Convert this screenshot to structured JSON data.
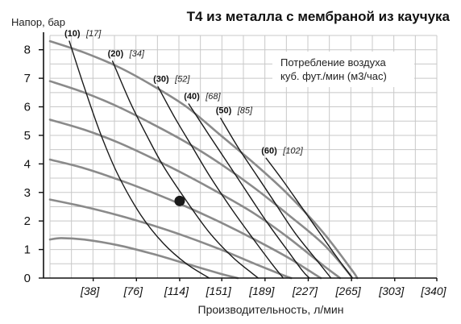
{
  "chart_data": {
    "type": "line",
    "title": "T4 из металла с мембраной из каучука",
    "ylabel": "Напор, бар",
    "xlabel": "Производительность, л/мин",
    "xlim": [
      0,
      340
    ],
    "ylim": [
      0,
      8.5
    ],
    "x_tick_labels": [
      "[38]",
      "[76]",
      "[114]",
      "[151]",
      "[189]",
      "[227]",
      "[265]",
      "[303]",
      "[340]"
    ],
    "x_tick_values": [
      38,
      76,
      114,
      151,
      189,
      227,
      265,
      303,
      340
    ],
    "y_ticks": [
      0,
      1,
      2,
      3,
      4,
      5,
      6,
      7,
      8
    ],
    "grid": true,
    "legend": {
      "line1": "Потребление воздуха",
      "line2": "куб. фут./мин (м3/час)",
      "placement": "top-right"
    },
    "marker": {
      "x": 114,
      "y": 2.7
    },
    "pump_curves": [
      {
        "points": [
          [
            0,
            8.3
          ],
          [
            30,
            7.9
          ],
          [
            60,
            7.4
          ],
          [
            90,
            6.75
          ],
          [
            120,
            6.0
          ],
          [
            150,
            5.0
          ],
          [
            180,
            4.0
          ],
          [
            210,
            2.9
          ],
          [
            240,
            1.6
          ],
          [
            265,
            0.3
          ],
          [
            270,
            0
          ]
        ]
      },
      {
        "points": [
          [
            0,
            6.9
          ],
          [
            30,
            6.5
          ],
          [
            60,
            6.0
          ],
          [
            90,
            5.4
          ],
          [
            120,
            4.75
          ],
          [
            150,
            4.0
          ],
          [
            180,
            3.15
          ],
          [
            210,
            2.2
          ],
          [
            240,
            1.2
          ],
          [
            262,
            0.2
          ],
          [
            265,
            0
          ]
        ]
      },
      {
        "points": [
          [
            0,
            5.55
          ],
          [
            30,
            5.2
          ],
          [
            60,
            4.75
          ],
          [
            90,
            4.2
          ],
          [
            120,
            3.6
          ],
          [
            150,
            2.95
          ],
          [
            180,
            2.25
          ],
          [
            210,
            1.4
          ],
          [
            240,
            0.45
          ],
          [
            255,
            0
          ]
        ]
      },
      {
        "points": [
          [
            0,
            4.15
          ],
          [
            30,
            3.85
          ],
          [
            60,
            3.45
          ],
          [
            90,
            3.0
          ],
          [
            120,
            2.5
          ],
          [
            150,
            1.95
          ],
          [
            180,
            1.35
          ],
          [
            210,
            0.7
          ],
          [
            232,
            0.15
          ],
          [
            238,
            0
          ]
        ]
      },
      {
        "points": [
          [
            0,
            2.75
          ],
          [
            30,
            2.5
          ],
          [
            60,
            2.2
          ],
          [
            90,
            1.85
          ],
          [
            120,
            1.45
          ],
          [
            150,
            1.0
          ],
          [
            180,
            0.5
          ],
          [
            205,
            0.1
          ],
          [
            212,
            0
          ]
        ]
      },
      {
        "points": [
          [
            0,
            1.35
          ],
          [
            10,
            1.4
          ],
          [
            30,
            1.35
          ],
          [
            60,
            1.15
          ],
          [
            90,
            0.85
          ],
          [
            120,
            0.5
          ],
          [
            150,
            0.15
          ],
          [
            165,
            0
          ]
        ]
      }
    ],
    "air_curves": [
      {
        "label_a": "(10)",
        "label_b": "[17]",
        "points": [
          [
            17,
            8.3
          ],
          [
            30,
            6.7
          ],
          [
            45,
            5.0
          ],
          [
            60,
            3.6
          ],
          [
            80,
            2.2
          ],
          [
            100,
            1.2
          ],
          [
            120,
            0.5
          ],
          [
            140,
            0
          ]
        ]
      },
      {
        "label_a": "(20)",
        "label_b": "[34]",
        "points": [
          [
            55,
            7.6
          ],
          [
            70,
            6.2
          ],
          [
            85,
            5.0
          ],
          [
            100,
            3.9
          ],
          [
            120,
            2.7
          ],
          [
            140,
            1.6
          ],
          [
            160,
            0.75
          ],
          [
            175,
            0.25
          ],
          [
            183,
            0
          ]
        ]
      },
      {
        "label_a": "(30)",
        "label_b": "[52]",
        "points": [
          [
            95,
            6.7
          ],
          [
            110,
            5.6
          ],
          [
            125,
            4.6
          ],
          [
            140,
            3.6
          ],
          [
            160,
            2.4
          ],
          [
            180,
            1.3
          ],
          [
            195,
            0.5
          ],
          [
            205,
            0
          ]
        ]
      },
      {
        "label_a": "(40)",
        "label_b": "[68]",
        "points": [
          [
            122,
            6.1
          ],
          [
            140,
            5.0
          ],
          [
            155,
            4.1
          ],
          [
            170,
            3.2
          ],
          [
            190,
            2.0
          ],
          [
            210,
            0.9
          ],
          [
            222,
            0.25
          ],
          [
            228,
            0
          ]
        ]
      },
      {
        "label_a": "(50)",
        "label_b": "[85]",
        "points": [
          [
            150,
            5.6
          ],
          [
            165,
            4.6
          ],
          [
            180,
            3.7
          ],
          [
            195,
            2.8
          ],
          [
            215,
            1.6
          ],
          [
            235,
            0.6
          ],
          [
            247,
            0
          ]
        ]
      },
      {
        "label_a": "(60)",
        "label_b": "[102]",
        "points": [
          [
            190,
            4.2
          ],
          [
            205,
            3.4
          ],
          [
            220,
            2.55
          ],
          [
            235,
            1.7
          ],
          [
            250,
            0.85
          ],
          [
            262,
            0.2
          ],
          [
            266,
            0
          ]
        ]
      }
    ]
  }
}
